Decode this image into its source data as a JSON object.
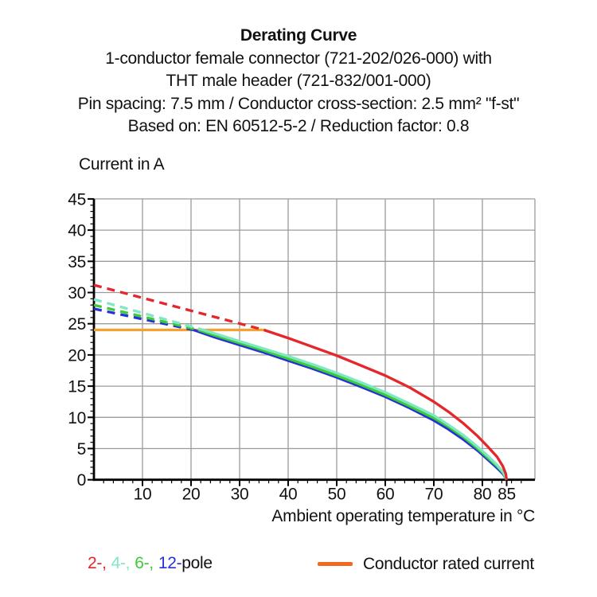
{
  "header": {
    "title": "Derating Curve",
    "subtitle_lines": [
      "1-conductor female connector (721-202/026-000) with",
      "THT male header (721-832/001-000)",
      "Pin spacing: 7.5 mm / Conductor cross-section: 2.5 mm² \"f-st\"",
      "Based on: EN 60512-5-2 / Reduction factor: 0.8"
    ]
  },
  "legend": {
    "poles": [
      {
        "label": "2-,",
        "color": "#E5262A"
      },
      {
        "label": "4-,",
        "color": "#7FE8C2"
      },
      {
        "label": "6-,",
        "color": "#3BCB35"
      },
      {
        "label": "12-",
        "color": "#2731D8"
      }
    ],
    "pole_suffix": "pole",
    "rated_current_label": "Conductor rated current",
    "rated_current_color": "#F2691D"
  },
  "chart_data": {
    "type": "line",
    "title": "Derating Curve",
    "xlabel": "Ambient operating temperature in °C",
    "ylabel": "Current in A",
    "xlim": [
      0,
      90.8
    ],
    "ylim": [
      0,
      45
    ],
    "x_major_ticks": [
      10,
      20,
      30,
      40,
      50,
      60,
      70,
      80,
      85
    ],
    "x_minor_step": 2,
    "y_major_tick_step": 5,
    "y_minor_step": 1,
    "grid": true,
    "grid_color": "#9B9B9B",
    "axis_color": "#000000",
    "rated_current_A": 24,
    "max_temperature_C": 85,
    "series": [
      {
        "name": "Conductor rated current",
        "color": "#F7A12F",
        "style": "solid",
        "points": [
          [
            0,
            24
          ],
          [
            35.3,
            24
          ]
        ]
      },
      {
        "name": "12-pole",
        "color": "#2731D8",
        "style": "dashed",
        "points": [
          [
            0,
            27.4
          ],
          [
            20.5,
            24
          ]
        ]
      },
      {
        "name": "12-pole",
        "color": "#2731D8",
        "style": "solid",
        "points": [
          [
            20.5,
            24
          ],
          [
            25,
            22.8
          ],
          [
            30,
            21.6
          ],
          [
            35,
            20.4
          ],
          [
            40,
            19.1
          ],
          [
            45,
            17.8
          ],
          [
            50,
            16.4
          ],
          [
            55,
            14.9
          ],
          [
            60,
            13.3
          ],
          [
            65,
            11.5
          ],
          [
            70,
            9.5
          ],
          [
            73,
            8.1
          ],
          [
            76,
            6.5
          ],
          [
            79,
            4.7
          ],
          [
            81,
            3.3
          ],
          [
            83,
            1.9
          ],
          [
            84.3,
            0.9
          ],
          [
            85,
            0
          ]
        ]
      },
      {
        "name": "6-pole",
        "color": "#3BCB35",
        "style": "dashed",
        "points": [
          [
            0,
            28.0
          ],
          [
            21.5,
            24
          ]
        ]
      },
      {
        "name": "6-pole",
        "color": "#3BCB35",
        "style": "solid",
        "points": [
          [
            21.5,
            24
          ],
          [
            25,
            23.1
          ],
          [
            30,
            21.9
          ],
          [
            35,
            20.7
          ],
          [
            40,
            19.4
          ],
          [
            45,
            18.1
          ],
          [
            50,
            16.7
          ],
          [
            55,
            15.2
          ],
          [
            60,
            13.6
          ],
          [
            65,
            11.8
          ],
          [
            70,
            9.9
          ],
          [
            73,
            8.5
          ],
          [
            76,
            6.9
          ],
          [
            79,
            5.0
          ],
          [
            81,
            3.6
          ],
          [
            83,
            2.2
          ],
          [
            84.3,
            1.1
          ],
          [
            85,
            0
          ]
        ]
      },
      {
        "name": "4-pole",
        "color": "#7FE8C2",
        "style": "dashed",
        "points": [
          [
            0,
            28.9
          ],
          [
            22.5,
            24
          ]
        ]
      },
      {
        "name": "4-pole",
        "color": "#7FE8C2",
        "style": "solid",
        "points": [
          [
            22.5,
            24
          ],
          [
            25,
            23.4
          ],
          [
            30,
            22.2
          ],
          [
            35,
            21.0
          ],
          [
            40,
            19.8
          ],
          [
            45,
            18.5
          ],
          [
            50,
            17.1
          ],
          [
            55,
            15.6
          ],
          [
            60,
            14.0
          ],
          [
            65,
            12.2
          ],
          [
            70,
            10.3
          ],
          [
            73,
            8.8
          ],
          [
            76,
            7.2
          ],
          [
            79,
            5.3
          ],
          [
            81,
            3.9
          ],
          [
            83,
            2.4
          ],
          [
            84.3,
            1.2
          ],
          [
            85,
            0
          ]
        ]
      },
      {
        "name": "2-pole",
        "color": "#E5262A",
        "style": "dashed",
        "points": [
          [
            0,
            31.2
          ],
          [
            35,
            24
          ]
        ]
      },
      {
        "name": "2-pole",
        "color": "#E5262A",
        "style": "solid",
        "points": [
          [
            35,
            24
          ],
          [
            40,
            22.7
          ],
          [
            45,
            21.3
          ],
          [
            50,
            19.9
          ],
          [
            55,
            18.3
          ],
          [
            60,
            16.7
          ],
          [
            65,
            14.8
          ],
          [
            70,
            12.5
          ],
          [
            73,
            10.9
          ],
          [
            76,
            9.1
          ],
          [
            79,
            7.0
          ],
          [
            81,
            5.4
          ],
          [
            83,
            3.7
          ],
          [
            84.2,
            2.2
          ],
          [
            84.8,
            1.0
          ],
          [
            85,
            0
          ]
        ]
      }
    ]
  }
}
